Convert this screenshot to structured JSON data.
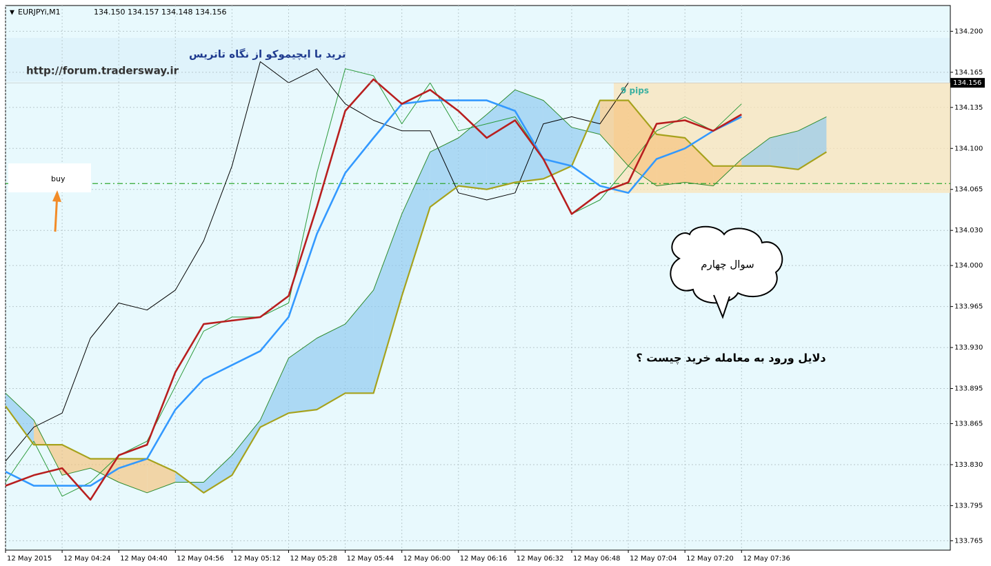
{
  "chart_data": {
    "type": "line",
    "title": "EURJPYi,M1",
    "ohlc": [
      "134.150",
      "134.157",
      "134.148",
      "134.156"
    ],
    "x": [
      0,
      8,
      16,
      24,
      32,
      40,
      48,
      56,
      64,
      72,
      80,
      88,
      96,
      104,
      112,
      120,
      128,
      136,
      144,
      152,
      160,
      168,
      176,
      184,
      192,
      200,
      208,
      216,
      224,
      232
    ],
    "series": [
      {
        "color": "#2a9a3a",
        "values": [
          133.815,
          133.85,
          133.803,
          133.815,
          133.838,
          133.85,
          133.897,
          133.944,
          133.956,
          133.956,
          133.968,
          134.079,
          134.168,
          134.162,
          134.121,
          134.156,
          134.115,
          134.121,
          134.127,
          134.091,
          134.044,
          134.056,
          134.085,
          134.115,
          134.127,
          134.115,
          134.138,
          null,
          null,
          null
        ]
      },
      {
        "color": "#000000",
        "values": [
          133.833,
          133.862,
          133.874,
          133.938,
          133.968,
          133.962,
          133.979,
          134.021,
          134.085,
          134.174,
          134.156,
          134.168,
          134.138,
          134.124,
          134.115,
          134.115,
          134.062,
          134.056,
          134.062,
          134.121,
          134.127,
          134.121,
          134.156,
          null,
          null,
          null,
          null,
          null,
          null,
          null
        ]
      },
      {
        "color": "#2e8b2e",
        "values": [
          133.891,
          133.868,
          133.821,
          133.827,
          133.815,
          133.806,
          133.815,
          133.815,
          133.838,
          133.868,
          133.921,
          133.938,
          133.95,
          133.979,
          134.044,
          134.097,
          134.109,
          134.129,
          134.15,
          134.141,
          134.118,
          134.112,
          134.085,
          134.068,
          134.071,
          134.068,
          134.091,
          134.109,
          134.115,
          134.127
        ]
      },
      {
        "color": "#a6a21c",
        "values": [
          133.88,
          133.847,
          133.847,
          133.835,
          133.835,
          133.835,
          133.824,
          133.806,
          133.821,
          133.862,
          133.874,
          133.877,
          133.891,
          133.891,
          133.974,
          134.05,
          134.068,
          134.065,
          134.071,
          134.074,
          134.085,
          134.141,
          134.141,
          134.112,
          134.109,
          134.085,
          134.085,
          134.085,
          134.082,
          134.097
        ]
      },
      {
        "color": "#3399ff",
        "values": [
          133.824,
          133.812,
          133.812,
          133.812,
          133.827,
          133.835,
          133.877,
          133.903,
          133.915,
          133.927,
          133.956,
          134.027,
          134.079,
          134.109,
          134.138,
          134.141,
          134.141,
          134.141,
          134.132,
          134.091,
          134.085,
          134.068,
          134.062,
          134.091,
          134.1,
          134.115,
          134.127,
          null,
          null,
          null
        ]
      },
      {
        "color": "#b81f1f",
        "values": [
          133.812,
          133.821,
          133.827,
          133.8,
          133.838,
          133.847,
          133.909,
          133.95,
          133.953,
          133.956,
          133.974,
          134.05,
          134.132,
          134.159,
          134.138,
          134.15,
          134.132,
          134.109,
          134.124,
          134.091,
          134.044,
          134.062,
          134.071,
          134.121,
          134.124,
          134.115,
          134.129,
          null,
          null,
          null
        ]
      }
    ],
    "xlim": [
      0,
      267
    ],
    "xticks": [
      {
        "value": 0,
        "label": "12 May 2015"
      },
      {
        "value": 16,
        "label": "12 May 04:24"
      },
      {
        "value": 32,
        "label": "12 May 04:40"
      },
      {
        "value": 48,
        "label": "12 May 04:56"
      },
      {
        "value": 64,
        "label": "12 May 05:12"
      },
      {
        "value": 80,
        "label": "12 May 05:28"
      },
      {
        "value": 96,
        "label": "12 May 05:44"
      },
      {
        "value": 112,
        "label": "12 May 06:00"
      },
      {
        "value": 128,
        "label": "12 May 06:16"
      },
      {
        "value": 144,
        "label": "12 May 06:32"
      },
      {
        "value": 160,
        "label": "12 May 06:48"
      },
      {
        "value": 176,
        "label": "12 May 07:04"
      },
      {
        "value": 192,
        "label": "12 May 07:20"
      },
      {
        "value": 208,
        "label": "12 May 07:36"
      }
    ],
    "ylim": [
      133.757,
      134.222
    ],
    "yticks": [
      {
        "value": 134.2,
        "label": "134.200"
      },
      134.165,
      134.135,
      {
        "value": 134.1,
        "label": "134.100"
      },
      134.065,
      {
        "value": 134.03,
        "label": "134.030"
      },
      {
        "value": 134.0,
        "label": "134.000"
      },
      133.965,
      {
        "value": 133.93,
        "label": "133.930"
      },
      133.895,
      133.865,
      {
        "value": 133.83,
        "label": "133.830"
      },
      133.795,
      133.765
    ],
    "grid": true,
    "current_price": 134.156,
    "buy_level": 134.07,
    "buy_label": "buy",
    "zone": [
      134.062,
      134.156
    ],
    "zone_label": "9 pips",
    "heading": "ترید با ایچیموکو از نگاه تاتریس",
    "url": "http://forum.tradersway.ir",
    "bubble_text": "سوال چهارم",
    "question": "دلایل ورود به معامله خرید چیست ؟"
  }
}
